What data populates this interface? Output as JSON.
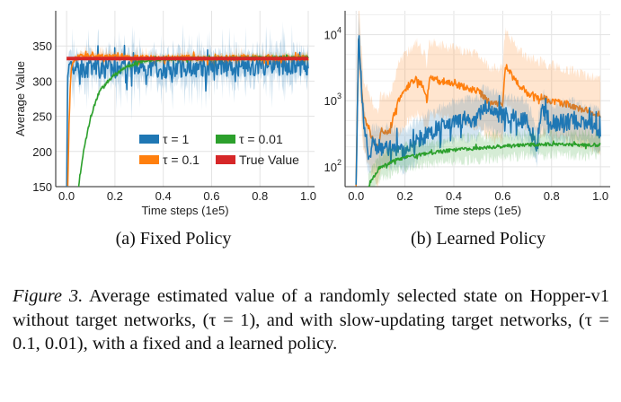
{
  "chart_data": [
    {
      "type": "line",
      "subtitle": "(a) Fixed Policy",
      "xlabel": "Time steps (1e5)",
      "ylabel": "Average Value",
      "xlim": [
        -0.045,
        1.026
      ],
      "ylim": [
        150,
        400
      ],
      "yscale": "linear",
      "xticks": [
        "0.0",
        "0.2",
        "0.4",
        "0.6",
        "0.8",
        "1.0"
      ],
      "yticks": [
        "150",
        "200",
        "250",
        "300",
        "350"
      ],
      "grid": true,
      "legend_position": "lower-right",
      "series": [
        {
          "name": "τ = 1",
          "color": "#1f77b4",
          "noise": 14,
          "band": 25,
          "x": [
            0,
            0.005,
            0.01,
            0.02,
            0.05,
            0.1,
            0.2,
            0.3,
            0.4,
            0.5,
            0.6,
            0.7,
            0.8,
            0.9,
            1.0
          ],
          "y": [
            150,
            300,
            310,
            318,
            320,
            318,
            318,
            320,
            318,
            320,
            320,
            320,
            322,
            322,
            322
          ]
        },
        {
          "name": "τ = 0.1",
          "color": "#ff7f0e",
          "noise": 4,
          "band": 6,
          "x": [
            0.005,
            0.01,
            0.015,
            0.02,
            0.03,
            0.05,
            0.1,
            0.2,
            0.3,
            0.4,
            0.6,
            0.8,
            1.0
          ],
          "y": [
            150,
            240,
            290,
            315,
            330,
            335,
            335,
            334,
            333,
            333,
            333,
            333,
            333
          ]
        },
        {
          "name": "τ = 0.01",
          "color": "#2ca02c",
          "noise": 2,
          "band": 4,
          "x": [
            0.05,
            0.07,
            0.1,
            0.13,
            0.15,
            0.2,
            0.25,
            0.3,
            0.35,
            0.4,
            0.5,
            0.6,
            0.8,
            1.0
          ],
          "y": [
            150,
            200,
            250,
            280,
            292,
            310,
            320,
            327,
            330,
            331,
            332,
            332,
            333,
            333
          ]
        },
        {
          "name": "True Value",
          "color": "#d62728",
          "noise": 0,
          "band": 0,
          "x": [
            0,
            1.0
          ],
          "y": [
            332,
            332
          ],
          "width": 4
        }
      ]
    },
    {
      "type": "line",
      "subtitle": "(b) Learned Policy",
      "xlabel": "Time steps (1e5)",
      "ylabel": "",
      "xlim": [
        -0.045,
        1.04
      ],
      "ylim": [
        50,
        23000
      ],
      "yscale": "log",
      "xticks": [
        "0.0",
        "0.2",
        "0.4",
        "0.6",
        "0.8",
        "1.0"
      ],
      "yticks": [
        {
          "base": "10",
          "exp": "2",
          "value": 100
        },
        {
          "base": "10",
          "exp": "3",
          "value": 1000
        },
        {
          "base": "10",
          "exp": "4",
          "value": 10000
        }
      ],
      "grid": true,
      "series": [
        {
          "name": "τ = 0.1",
          "color": "#ff7f0e",
          "noise": 0.04,
          "band_factor": 3.5,
          "x": [
            0,
            0.01,
            0.03,
            0.05,
            0.07,
            0.09,
            0.1,
            0.14,
            0.17,
            0.2,
            0.25,
            0.28,
            0.29,
            0.3,
            0.4,
            0.5,
            0.55,
            0.6,
            0.61,
            0.65,
            0.7,
            0.8,
            0.9,
            1.0
          ],
          "y": [
            50,
            9000,
            600,
            400,
            250,
            180,
            350,
            350,
            1000,
            1500,
            2200,
            1500,
            1000,
            2200,
            1800,
            1400,
            900,
            900,
            3400,
            2000,
            1300,
            1000,
            800,
            600
          ]
        },
        {
          "name": "τ = 1",
          "color": "#1f77b4",
          "noise": 0.1,
          "band_factor": 2,
          "x": [
            0,
            0.01,
            0.03,
            0.05,
            0.07,
            0.1,
            0.15,
            0.2,
            0.25,
            0.3,
            0.4,
            0.5,
            0.52,
            0.6,
            0.7,
            0.74,
            0.76,
            0.8,
            0.9,
            1.0
          ],
          "y": [
            50,
            11000,
            500,
            150,
            200,
            200,
            200,
            170,
            250,
            330,
            500,
            550,
            800,
            600,
            500,
            200,
            700,
            450,
            500,
            350
          ]
        },
        {
          "name": "τ = 0.01",
          "color": "#2ca02c",
          "noise": 0.02,
          "band_factor": 1.5,
          "x": [
            0.05,
            0.08,
            0.1,
            0.15,
            0.2,
            0.3,
            0.4,
            0.5,
            0.6,
            0.7,
            0.8,
            0.9,
            1.0
          ],
          "y": [
            50,
            80,
            100,
            120,
            140,
            160,
            180,
            190,
            205,
            215,
            220,
            215,
            215
          ]
        }
      ]
    }
  ],
  "caption": {
    "label": "Figure 3.",
    "text": " Average estimated value of a randomly selected state on Hopper-v1 without target networks, (τ = 1), and with slow-updating target networks, (τ = 0.1, 0.01), with a fixed and a learned policy."
  }
}
